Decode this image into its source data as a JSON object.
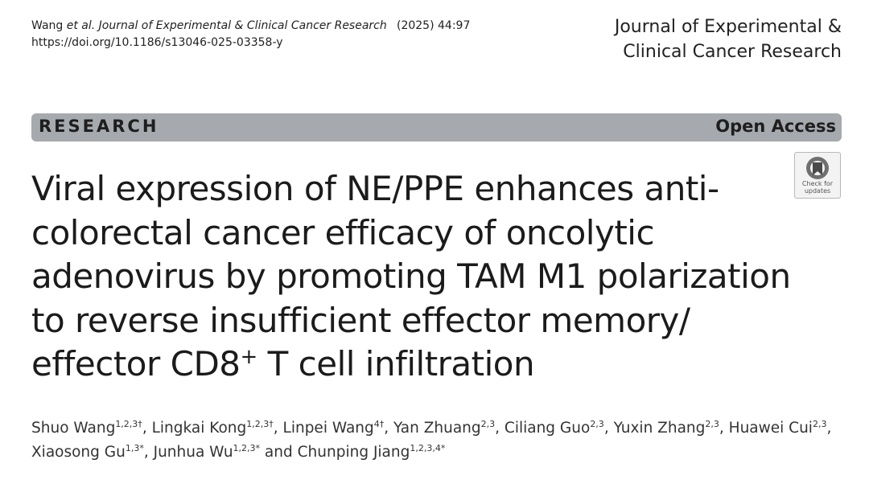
{
  "citation": {
    "authors_short": "Wang",
    "etal": " et al. ",
    "journal": "Journal of Experimental & Clinical Cancer Research",
    "year_volume": "(2025) 44:97",
    "doi": "https://doi.org/10.1186/s13046-025-03358-y"
  },
  "journal_name": {
    "line1": "Journal of Experimental &",
    "line2": "Clinical Cancer Research"
  },
  "banner": {
    "article_type": "RESEARCH",
    "access": "Open Access"
  },
  "check_updates": {
    "label_line1": "Check for",
    "label_line2": "updates",
    "icon": "check-for-updates-icon"
  },
  "title": {
    "line1": "Viral expression of NE/PPE enhances anti-",
    "line2": "colorectal cancer efficacy of oncolytic",
    "line3": "adenovirus by promoting TAM M1 polarization",
    "line4": "to reverse insufficient effector memory/",
    "line5_pre": "effector CD8",
    "line5_sup": "+",
    "line5_post": " T cell infiltration"
  },
  "authors": [
    {
      "name": "Shuo Wang",
      "aff": "1,2,3†",
      "sep": ", "
    },
    {
      "name": "Lingkai Kong",
      "aff": "1,2,3†",
      "sep": ", "
    },
    {
      "name": "Linpei Wang",
      "aff": "4†",
      "sep": ", "
    },
    {
      "name": "Yan Zhuang",
      "aff": "2,3",
      "sep": ", "
    },
    {
      "name": "Ciliang Guo",
      "aff": "2,3",
      "sep": ", "
    },
    {
      "name": "Yuxin Zhang",
      "aff": "2,3",
      "sep": ", "
    },
    {
      "name": "Huawei Cui",
      "aff": "2,3",
      "sep": ","
    },
    {
      "name": "Xiaosong Gu",
      "aff": "1,3*",
      "sep": ", "
    },
    {
      "name": "Junhua Wu",
      "aff": "1,2,3*",
      "sep": " and "
    },
    {
      "name": "Chunping Jiang",
      "aff": "1,2,3,4*",
      "sep": ""
    }
  ],
  "colors": {
    "banner_bg": "#a6a9ae",
    "text": "#1b1b1b"
  }
}
